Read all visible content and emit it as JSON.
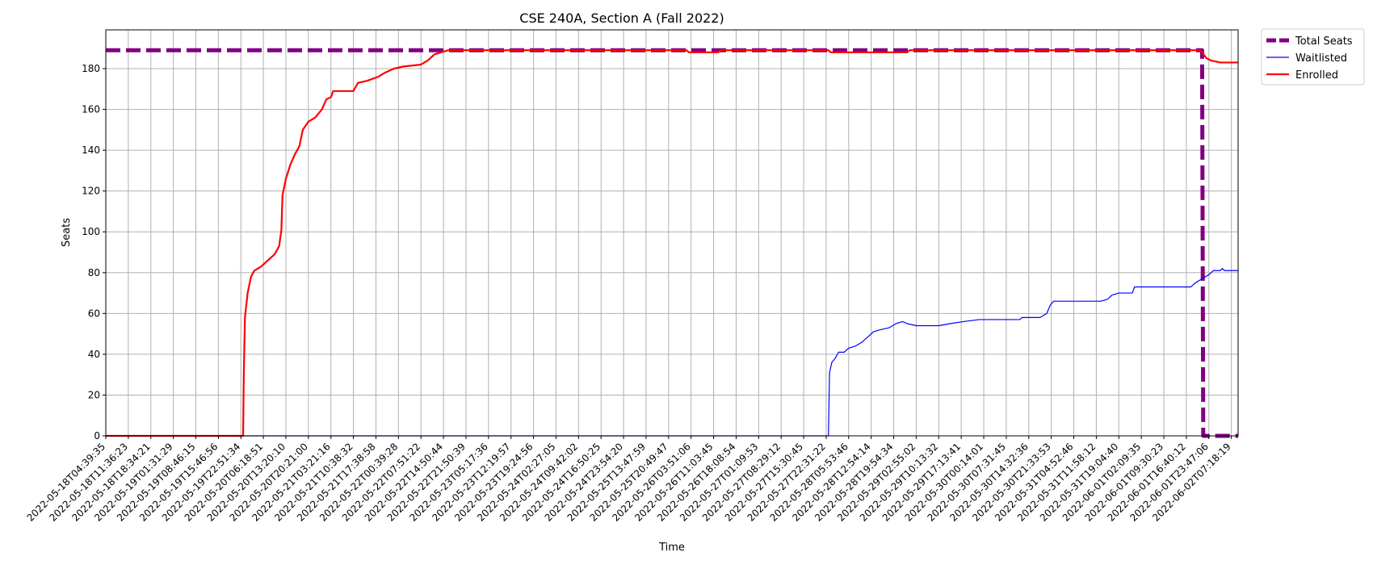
{
  "chart_data": {
    "type": "line",
    "title": "CSE 240A, Section A (Fall 2022)",
    "xlabel": "Time",
    "ylabel": "Seats",
    "ylim": [
      0,
      199
    ],
    "yticks": [
      0,
      20,
      40,
      60,
      80,
      100,
      120,
      140,
      160,
      180
    ],
    "grid": true,
    "legend_position": "outside top-right",
    "x_ticks": [
      "2022-05-18T04:39:35",
      "2022-05-18T11:36:23",
      "2022-05-18T18:34:21",
      "2022-05-19T01:31:29",
      "2022-05-19T08:46:15",
      "2022-05-19T15:46:56",
      "2022-05-19T22:51:34",
      "2022-05-20T06:18:51",
      "2022-05-20T13:20:10",
      "2022-05-20T20:21:00",
      "2022-05-21T03:21:16",
      "2022-05-21T10:38:32",
      "2022-05-21T17:38:58",
      "2022-05-22T00:39:28",
      "2022-05-22T07:51:22",
      "2022-05-22T14:50:44",
      "2022-05-22T21:50:39",
      "2022-05-23T05:17:36",
      "2022-05-23T12:19:57",
      "2022-05-23T19:24:56",
      "2022-05-24T02:27:05",
      "2022-05-24T09:42:02",
      "2022-05-24T16:50:25",
      "2022-05-24T23:54:20",
      "2022-05-25T13:47:59",
      "2022-05-25T20:49:47",
      "2022-05-26T03:51:06",
      "2022-05-26T11:03:45",
      "2022-05-26T18:08:54",
      "2022-05-27T01:09:53",
      "2022-05-27T08:29:12",
      "2022-05-27T15:30:45",
      "2022-05-27T22:31:22",
      "2022-05-28T05:53:46",
      "2022-05-28T12:54:14",
      "2022-05-28T19:54:34",
      "2022-05-29T02:55:02",
      "2022-05-29T10:13:32",
      "2022-05-29T17:13:41",
      "2022-05-30T00:14:01",
      "2022-05-30T07:31:45",
      "2022-05-30T14:32:36",
      "2022-05-30T21:33:53",
      "2022-05-31T04:52:46",
      "2022-05-31T11:58:12",
      "2022-05-31T19:04:40",
      "2022-06-01T02:09:35",
      "2022-06-01T09:30:23",
      "2022-06-01T16:40:12",
      "2022-06-01T23:47:06",
      "2022-06-02T07:18:19"
    ],
    "x_max": 50.3,
    "series": [
      {
        "name": "Total Seats",
        "color": "#800080",
        "style": "dashed",
        "points": [
          [
            0,
            189
          ],
          [
            48.7,
            189
          ],
          [
            48.75,
            0
          ],
          [
            50.3,
            0
          ]
        ]
      },
      {
        "name": "Waitlisted",
        "color": "#0000ff",
        "style": "solid",
        "points": [
          [
            0,
            0
          ],
          [
            32.1,
            0
          ],
          [
            32.15,
            31
          ],
          [
            32.25,
            36
          ],
          [
            32.4,
            38
          ],
          [
            32.55,
            41
          ],
          [
            32.8,
            41
          ],
          [
            33.0,
            43
          ],
          [
            33.3,
            44
          ],
          [
            33.6,
            46
          ],
          [
            33.9,
            49
          ],
          [
            34.1,
            51
          ],
          [
            34.4,
            52
          ],
          [
            34.8,
            53
          ],
          [
            35.1,
            55
          ],
          [
            35.4,
            56
          ],
          [
            35.6,
            55
          ],
          [
            36.0,
            54
          ],
          [
            37.0,
            54
          ],
          [
            37.5,
            55
          ],
          [
            38.1,
            56
          ],
          [
            38.8,
            57
          ],
          [
            40.6,
            57
          ],
          [
            40.7,
            58
          ],
          [
            41.5,
            58
          ],
          [
            41.8,
            60
          ],
          [
            41.95,
            64
          ],
          [
            42.1,
            66
          ],
          [
            44.2,
            66
          ],
          [
            44.5,
            67
          ],
          [
            44.7,
            69
          ],
          [
            45.0,
            70
          ],
          [
            45.6,
            70
          ],
          [
            45.7,
            73
          ],
          [
            48.2,
            73
          ],
          [
            48.4,
            75
          ],
          [
            48.7,
            77
          ],
          [
            49.0,
            79
          ],
          [
            49.2,
            81
          ],
          [
            49.5,
            81
          ],
          [
            49.6,
            82
          ],
          [
            49.7,
            81
          ],
          [
            50.3,
            81
          ]
        ]
      },
      {
        "name": "Enrolled",
        "color": "#ff0000",
        "style": "solid",
        "points": [
          [
            0,
            0
          ],
          [
            6.1,
            0
          ],
          [
            6.13,
            30
          ],
          [
            6.18,
            58
          ],
          [
            6.3,
            70
          ],
          [
            6.45,
            78
          ],
          [
            6.6,
            81
          ],
          [
            6.9,
            83
          ],
          [
            7.2,
            86
          ],
          [
            7.5,
            89
          ],
          [
            7.7,
            93
          ],
          [
            7.8,
            101
          ],
          [
            7.85,
            118
          ],
          [
            8.0,
            126
          ],
          [
            8.2,
            133
          ],
          [
            8.4,
            138
          ],
          [
            8.6,
            142
          ],
          [
            8.75,
            150
          ],
          [
            9.0,
            154
          ],
          [
            9.3,
            156
          ],
          [
            9.6,
            160
          ],
          [
            9.8,
            165
          ],
          [
            10.0,
            166
          ],
          [
            10.1,
            169
          ],
          [
            11.0,
            169
          ],
          [
            11.2,
            173
          ],
          [
            11.6,
            174
          ],
          [
            12.1,
            176
          ],
          [
            12.4,
            178
          ],
          [
            12.8,
            180
          ],
          [
            13.2,
            181
          ],
          [
            14.0,
            182
          ],
          [
            14.3,
            184
          ],
          [
            14.6,
            187
          ],
          [
            14.9,
            188
          ],
          [
            15.2,
            189
          ],
          [
            25.8,
            189
          ],
          [
            25.9,
            188
          ],
          [
            27.2,
            188
          ],
          [
            27.3,
            189
          ],
          [
            32.1,
            189
          ],
          [
            32.2,
            188
          ],
          [
            35.6,
            188
          ],
          [
            35.7,
            189
          ],
          [
            48.6,
            189
          ],
          [
            48.7,
            188
          ],
          [
            48.9,
            185
          ],
          [
            49.1,
            184
          ],
          [
            49.5,
            183
          ],
          [
            50.3,
            183
          ]
        ]
      }
    ]
  }
}
